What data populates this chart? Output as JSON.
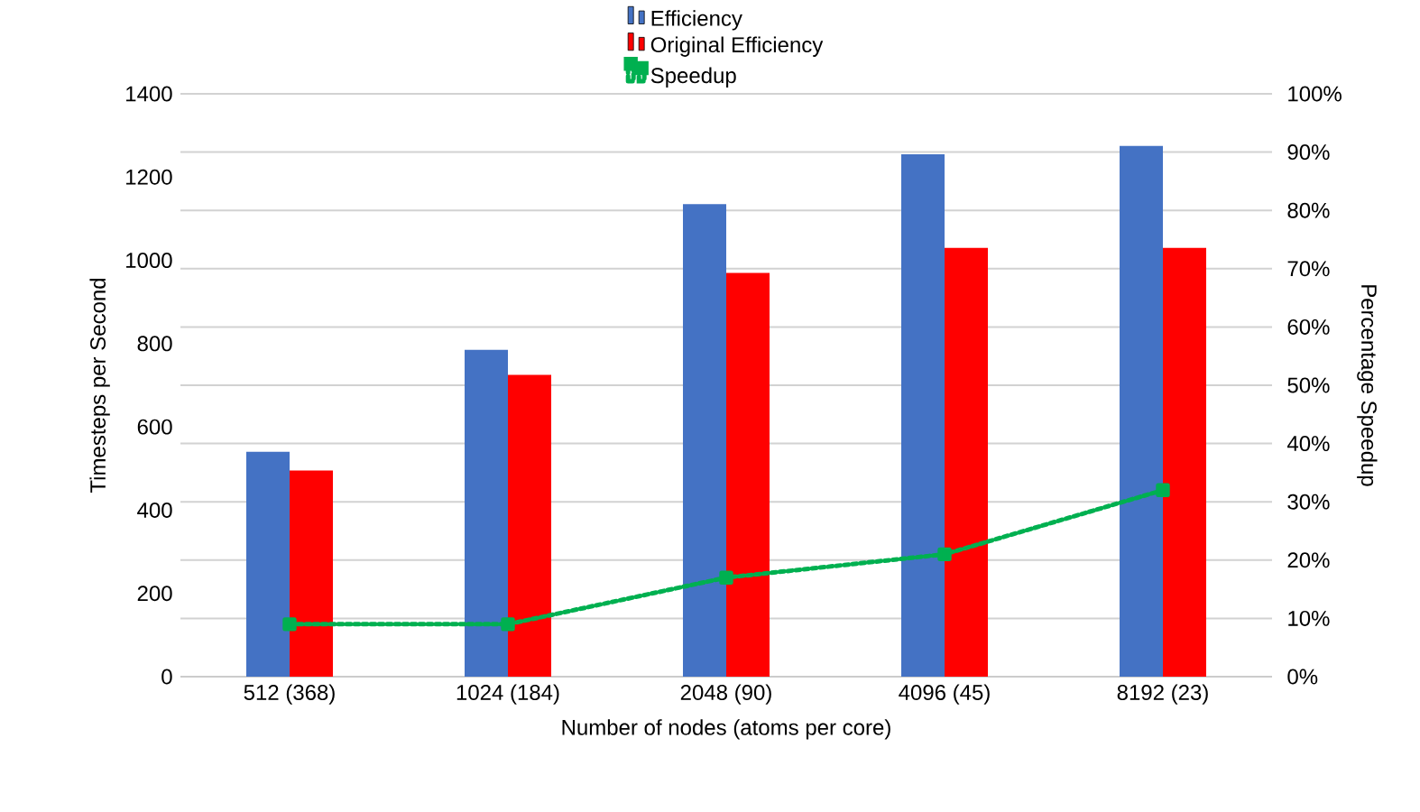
{
  "chart_data": {
    "type": "bar",
    "xlabel": "Number of nodes (atoms per core)",
    "ylabel": "Timesteps per Second",
    "y2label": "Percentage Speedup",
    "categories": [
      "512 (368)",
      "1024 (184)",
      "2048 (90)",
      "4096 (45)",
      "8192 (23)"
    ],
    "series": [
      {
        "name": "Efficiency",
        "color": "#4472c4",
        "values": [
          540,
          785,
          1135,
          1255,
          1275
        ]
      },
      {
        "name": "Original Efficiency",
        "color": "#ff0000",
        "values": [
          495,
          725,
          970,
          1030,
          1030
        ]
      },
      {
        "name": "Speedup",
        "type": "line",
        "axis": "y2",
        "color": "#00b050",
        "marker": "square",
        "line_style": "dotted",
        "values": [
          9,
          9,
          17,
          21,
          32
        ]
      }
    ],
    "ylim": [
      0,
      1400
    ],
    "yticks": [
      0,
      200,
      400,
      600,
      800,
      1000,
      1200,
      1400
    ],
    "y2lim": [
      0,
      100
    ],
    "y2ticks": [
      {
        "value": 0,
        "label": "0%"
      },
      {
        "value": 10,
        "label": "10%"
      },
      {
        "value": 20,
        "label": "20%"
      },
      {
        "value": 30,
        "label": "30%"
      },
      {
        "value": 40,
        "label": "40%"
      },
      {
        "value": 50,
        "label": "50%"
      },
      {
        "value": 60,
        "label": "60%"
      },
      {
        "value": 70,
        "label": "70%"
      },
      {
        "value": 80,
        "label": "80%"
      },
      {
        "value": 90,
        "label": "90%"
      },
      {
        "value": 100,
        "label": "100%"
      }
    ],
    "grid": "y2",
    "legend": "top"
  }
}
